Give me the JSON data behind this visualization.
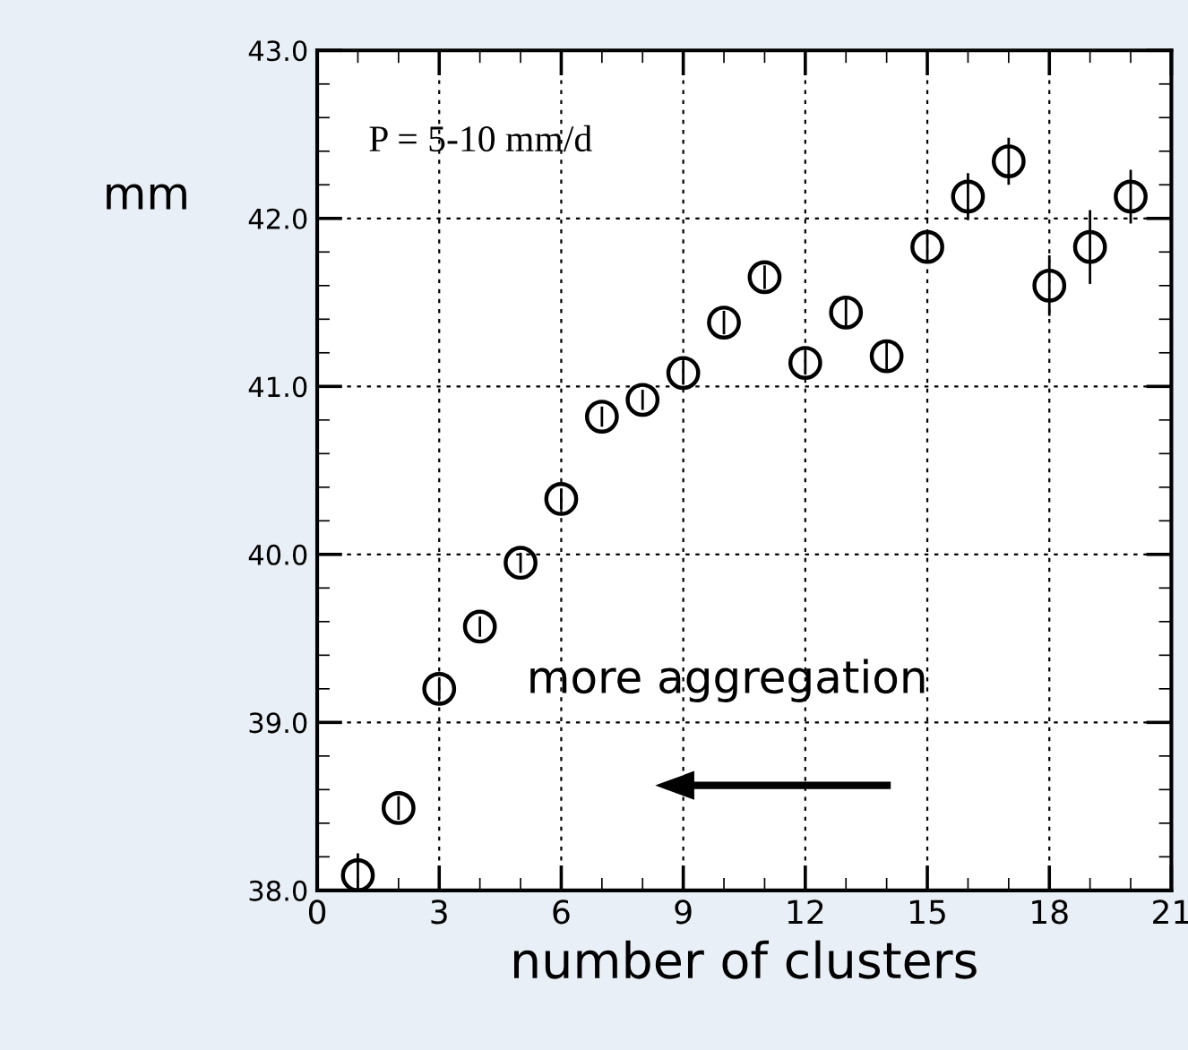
{
  "chart_data": {
    "type": "scatter",
    "xlabel": "number of clusters",
    "ylabel": "mm",
    "x": [
      1,
      2,
      3,
      4,
      5,
      6,
      7,
      8,
      9,
      10,
      11,
      12,
      13,
      14,
      15,
      16,
      17,
      18,
      19,
      20
    ],
    "values": [
      38.09,
      38.49,
      39.2,
      39.57,
      39.95,
      40.33,
      40.82,
      40.92,
      41.08,
      41.38,
      41.65,
      41.14,
      41.44,
      41.18,
      41.83,
      42.13,
      42.34,
      41.6,
      41.83,
      42.13
    ],
    "errors": [
      0.13,
      0.07,
      0.06,
      0.06,
      0.06,
      0.06,
      0.06,
      0.06,
      0.07,
      0.07,
      0.07,
      0.07,
      0.08,
      0.08,
      0.08,
      0.14,
      0.14,
      0.18,
      0.22,
      0.16
    ],
    "color": "#000000",
    "marker": "circle",
    "xlim": [
      0,
      21
    ],
    "xticks": [
      0,
      3,
      6,
      9,
      12,
      15,
      18,
      21
    ],
    "ylim": [
      38,
      43
    ],
    "yticks": [
      {
        "value": 38,
        "label": "38.0"
      },
      {
        "value": 39,
        "label": "39.0"
      },
      {
        "value": 40,
        "label": "40.0"
      },
      {
        "value": 41,
        "label": "41.0"
      },
      {
        "value": 42,
        "label": "42.0"
      },
      {
        "value": 43,
        "label": "43.0"
      }
    ],
    "grid": true,
    "annotations": [
      "P = 5-10 mm/d",
      "more aggregation"
    ]
  }
}
